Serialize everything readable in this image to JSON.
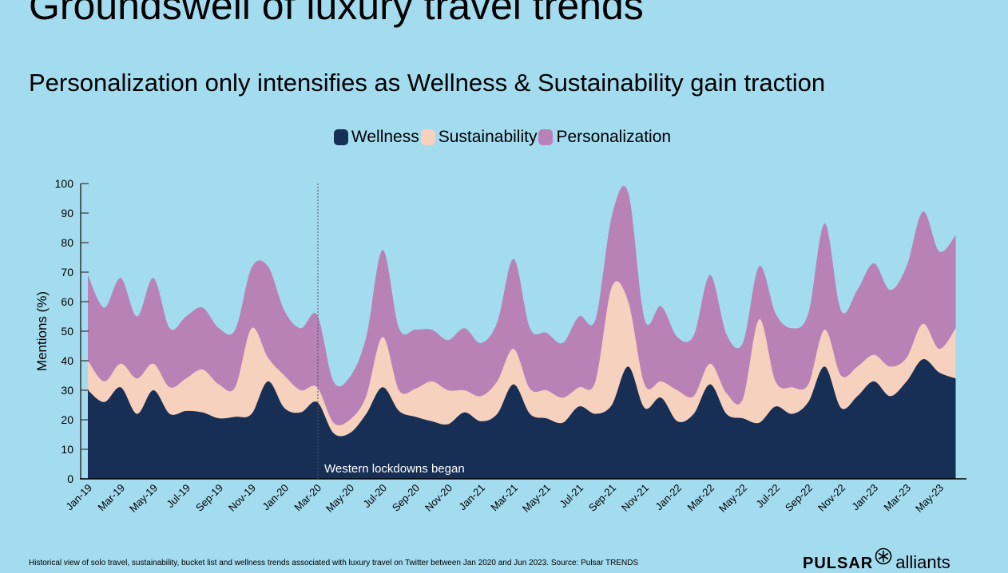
{
  "header": {
    "title": "Groundswell of luxury travel trends",
    "subtitle": "Personalization only intensifies as Wellness & Sustainability gain traction"
  },
  "footer": {
    "note": "Historical view of solo travel, sustainability, bucket list and wellness trends associated with luxury travel on Twitter between Jan 2020 and Jun 2023. Source: Pulsar TRENDS",
    "logo_left": "PULSAR",
    "logo_right": "alliants"
  },
  "chart_data": {
    "type": "area",
    "stacked": true,
    "title": "Personalization only intensifies as Wellness & Sustainability gain traction",
    "xlabel": "",
    "ylabel": "Mentions (%)",
    "ylim": [
      0,
      100
    ],
    "yticks": [
      0,
      10,
      20,
      30,
      40,
      50,
      60,
      70,
      80,
      90,
      100
    ],
    "legend_position": "top-center",
    "x": [
      "Jan-19",
      "Feb-19",
      "Mar-19",
      "Apr-19",
      "May-19",
      "Jun-19",
      "Jul-19",
      "Aug-19",
      "Sep-19",
      "Oct-19",
      "Nov-19",
      "Dec-19",
      "Jan-20",
      "Feb-20",
      "Mar-20",
      "Apr-20",
      "May-20",
      "Jun-20",
      "Jul-20",
      "Aug-20",
      "Sep-20",
      "Oct-20",
      "Nov-20",
      "Dec-20",
      "Jan-21",
      "Feb-21",
      "Mar-21",
      "Apr-21",
      "May-21",
      "Jun-21",
      "Jul-21",
      "Aug-21",
      "Sep-21",
      "Oct-21",
      "Nov-21",
      "Dec-21",
      "Jan-22",
      "Feb-22",
      "Mar-22",
      "Apr-22",
      "May-22",
      "Jun-22",
      "Jul-22",
      "Aug-22",
      "Sep-22",
      "Oct-22",
      "Nov-22",
      "Dec-22",
      "Jan-23",
      "Feb-23",
      "Mar-23",
      "Apr-23",
      "May-23",
      "Jun-23"
    ],
    "xtick_labels": [
      "Jan-19",
      "Mar-19",
      "May-19",
      "Jul-19",
      "Sep-19",
      "Nov-19",
      "Jan-20",
      "Mar-20",
      "May-20",
      "Jul-20",
      "Sep-20",
      "Nov-20",
      "Jan-21",
      "Mar-21",
      "May-21",
      "Jul-21",
      "Sep-21",
      "Nov-21",
      "Jan-22",
      "Mar-22",
      "May-22",
      "Jul-22",
      "Sep-22",
      "Nov-22",
      "Jan-23",
      "Mar-23",
      "May-23"
    ],
    "series": [
      {
        "name": "Wellness",
        "color": "#182f55",
        "values": [
          30,
          26,
          31,
          22,
          30,
          22,
          23,
          22.5,
          20.5,
          21,
          22,
          33,
          24,
          22.5,
          26,
          15.5,
          15.5,
          22,
          31,
          23,
          21,
          19.5,
          18.5,
          22.5,
          19.5,
          22,
          32,
          22,
          20.5,
          19,
          24.5,
          22,
          25,
          38,
          24,
          27.5,
          19.5,
          22,
          32,
          22,
          20.5,
          19,
          24.5,
          22,
          26,
          38,
          24,
          28,
          33,
          28,
          33,
          40.5,
          36,
          34
        ]
      },
      {
        "name": "Sustainability",
        "color": "#f6d1bd",
        "values": [
          10,
          7,
          8,
          12,
          9,
          9,
          11,
          14.5,
          11.5,
          10,
          29,
          8,
          11,
          7.5,
          5,
          3.5,
          4.5,
          6,
          17,
          7,
          9.5,
          13.5,
          11.5,
          7.5,
          8.5,
          11,
          12,
          8.5,
          9.5,
          8.5,
          6.5,
          11,
          40,
          22,
          8,
          5.5,
          10.5,
          6,
          7,
          7,
          6.5,
          35,
          8.5,
          9,
          6,
          12.5,
          11,
          10,
          9,
          10,
          8,
          12,
          8,
          17
        ]
      },
      {
        "name": "Personalization",
        "color": "#b882b7",
        "values": [
          29,
          25,
          29,
          21,
          29,
          20,
          21,
          21,
          19,
          19.5,
          20.5,
          31,
          22,
          21,
          24.5,
          14,
          14.5,
          20,
          29.5,
          21,
          20,
          17.5,
          17,
          21,
          18,
          20,
          30.5,
          20.5,
          19.5,
          18.5,
          24,
          21,
          24,
          37,
          22,
          25.5,
          18,
          20.5,
          30,
          20,
          19,
          18,
          23,
          20,
          24,
          36,
          22,
          26,
          31,
          26,
          31,
          38,
          33,
          31.5
        ]
      }
    ],
    "annotations": [
      {
        "x": "Mar-20",
        "text": "Western lockdowns began",
        "style": "dotted vertical line"
      }
    ]
  }
}
